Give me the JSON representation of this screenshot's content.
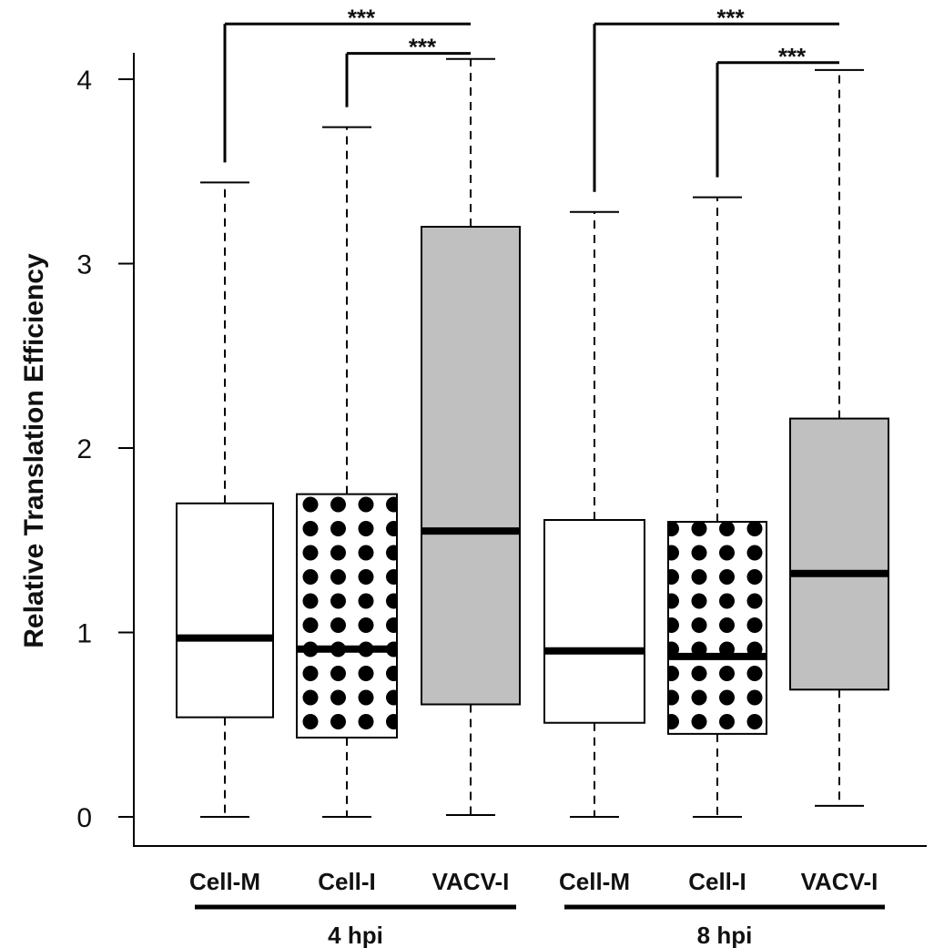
{
  "chart_data": {
    "type": "box",
    "ylabel": "Relative Translation Efficiency",
    "ylim": [
      0,
      4.25
    ],
    "yticks": [
      0,
      1,
      2,
      3,
      4
    ],
    "grid": false,
    "legend": "none",
    "categories": [
      "Cell-M",
      "Cell-I",
      "VACV-I",
      "Cell-M",
      "Cell-I",
      "VACV-I"
    ],
    "groups": [
      {
        "label": "4 hpi",
        "members": [
          0,
          1,
          2
        ]
      },
      {
        "label": "8 hpi",
        "members": [
          3,
          4,
          5
        ]
      }
    ],
    "boxes": [
      {
        "category": "Cell-M",
        "group": "4 hpi",
        "min": 0.0,
        "q1": 0.54,
        "median": 0.97,
        "q3": 1.7,
        "max": 3.44,
        "fill": "white"
      },
      {
        "category": "Cell-I",
        "group": "4 hpi",
        "min": 0.0,
        "q1": 0.43,
        "median": 0.91,
        "q3": 1.75,
        "max": 3.74,
        "fill": "dots"
      },
      {
        "category": "VACV-I",
        "group": "4 hpi",
        "min": 0.01,
        "q1": 0.61,
        "median": 1.55,
        "q3": 3.2,
        "max": 4.11,
        "fill": "gray"
      },
      {
        "category": "Cell-M",
        "group": "8 hpi",
        "min": 0.0,
        "q1": 0.51,
        "median": 0.9,
        "q3": 1.61,
        "max": 3.28,
        "fill": "white"
      },
      {
        "category": "Cell-I",
        "group": "8 hpi",
        "min": 0.0,
        "q1": 0.45,
        "median": 0.87,
        "q3": 1.6,
        "max": 3.36,
        "fill": "dots"
      },
      {
        "category": "VACV-I",
        "group": "8 hpi",
        "min": 0.06,
        "q1": 0.69,
        "median": 1.32,
        "q3": 2.16,
        "max": 4.05,
        "fill": "gray"
      }
    ],
    "significance": [
      {
        "from": 0,
        "to": 2,
        "label": "***",
        "level": 4.3
      },
      {
        "from": 1,
        "to": 2,
        "label": "***",
        "level": 4.14
      },
      {
        "from": 3,
        "to": 5,
        "label": "***",
        "level": 4.3
      },
      {
        "from": 4,
        "to": 5,
        "label": "***",
        "level": 4.09
      }
    ],
    "colors": {
      "box_gray": "#c0c0c0",
      "dot": "#000000",
      "line": "#000000"
    }
  }
}
